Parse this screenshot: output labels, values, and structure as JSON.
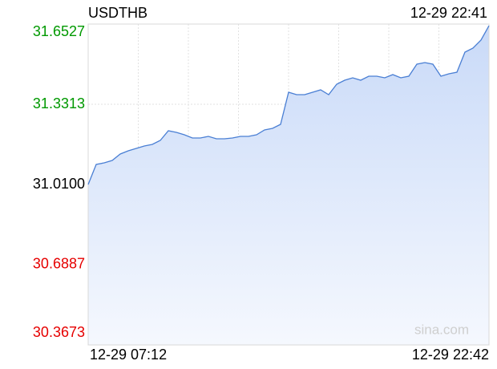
{
  "chart_data": {
    "type": "line",
    "title": "USDTHB",
    "last_time": "12-29 22:41",
    "x_start": "12-29 07:12",
    "x_end": "12-29 22:42",
    "watermark": "sina.com",
    "color": "#4a7fd4",
    "fill": "#dbe6fb",
    "up_color": "#009900",
    "down_color": "#e60000",
    "flat_color": "#000000",
    "prev_close": 31.01,
    "ylim": [
      30.3673,
      31.6527
    ],
    "yticks": [
      {
        "value": 30.3673,
        "label": "30.3673"
      },
      {
        "value": 30.6887,
        "label": "30.6887"
      },
      {
        "value": 31.01,
        "label": "31.0100"
      },
      {
        "value": 31.3313,
        "label": "31.3313"
      },
      {
        "value": 31.6527,
        "label": "31.6527"
      }
    ],
    "grid": true,
    "values": [
      31.01,
      31.0903,
      31.0968,
      31.1064,
      31.1321,
      31.1449,
      31.1546,
      31.1642,
      31.1707,
      31.1867,
      31.2253,
      31.2188,
      31.2092,
      31.1964,
      31.1964,
      31.2028,
      31.1931,
      31.1931,
      31.1964,
      31.2028,
      31.2028,
      31.2092,
      31.2285,
      31.2349,
      31.251,
      31.3795,
      31.3699,
      31.3699,
      31.3795,
      31.3891,
      31.3699,
      31.4116,
      31.4277,
      31.4373,
      31.4277,
      31.4438,
      31.4438,
      31.4373,
      31.4502,
      31.4373,
      31.4438,
      31.492,
      31.4984,
      31.492,
      31.4438,
      31.4534,
      31.4598,
      31.5401,
      31.5562,
      31.5883,
      31.6461
    ]
  }
}
